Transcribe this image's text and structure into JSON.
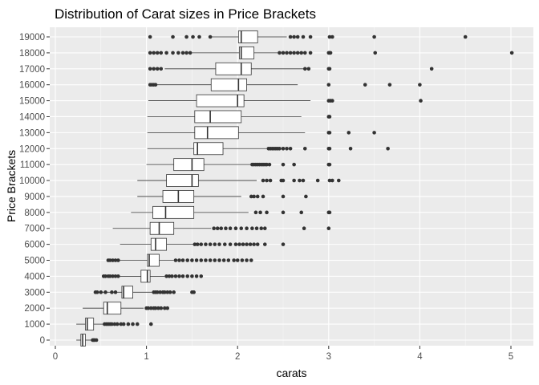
{
  "chart_data": {
    "type": "boxplot",
    "orientation": "horizontal",
    "title": "Distribution of Carat sizes in Price Brackets",
    "xlabel": "carats",
    "ylabel": "Price Brackets",
    "xlim": [
      0,
      5.25
    ],
    "x_ticks": [
      0,
      1,
      2,
      3,
      4,
      5
    ],
    "grid": true,
    "colors": {
      "panel": "#ebebeb",
      "grid_major": "#ffffff",
      "box_fill": "#ffffff",
      "line": "#333333",
      "outlier": "#333333"
    },
    "categories": [
      "0",
      "1000",
      "2000",
      "3000",
      "4000",
      "5000",
      "6000",
      "7000",
      "8000",
      "9000",
      "10000",
      "11000",
      "12000",
      "13000",
      "14000",
      "15000",
      "16000",
      "17000",
      "18000",
      "19000"
    ],
    "boxes": [
      {
        "category": "0",
        "min": 0.23,
        "q1": 0.28,
        "median": 0.3,
        "q3": 0.33,
        "max": 0.4,
        "outliers": [
          0.41,
          0.42,
          0.43,
          0.45
        ]
      },
      {
        "category": "1000",
        "min": 0.23,
        "q1": 0.33,
        "median": 0.35,
        "q3": 0.42,
        "max": 0.53,
        "outliers": [
          0.54,
          0.56,
          0.58,
          0.6,
          0.62,
          0.65,
          0.68,
          0.72,
          0.75,
          0.8,
          0.85,
          0.9,
          1.05
        ]
      },
      {
        "category": "2000",
        "min": 0.3,
        "q1": 0.53,
        "median": 0.57,
        "q3": 0.72,
        "max": 0.97,
        "outliers": [
          1.0,
          1.02,
          1.05,
          1.08,
          1.1,
          1.13,
          1.16,
          1.2,
          1.23
        ]
      },
      {
        "category": "3000",
        "min": 0.43,
        "q1": 0.73,
        "median": 0.75,
        "q3": 0.85,
        "max": 1.06,
        "outliers": [
          0.44,
          0.46,
          0.5,
          0.55,
          0.62,
          0.66,
          1.08,
          1.1,
          1.12,
          1.15,
          1.18,
          1.2,
          1.23,
          1.26,
          1.3,
          1.5,
          1.52
        ]
      },
      {
        "category": "4000",
        "min": 0.7,
        "q1": 0.94,
        "median": 1.01,
        "q3": 1.04,
        "max": 1.2,
        "outliers": [
          0.53,
          0.55,
          0.58,
          0.6,
          0.63,
          0.66,
          0.69,
          1.22,
          1.25,
          1.28,
          1.32,
          1.36,
          1.4,
          1.45,
          1.5,
          1.55,
          1.6
        ]
      },
      {
        "category": "5000",
        "min": 0.7,
        "q1": 1.01,
        "median": 1.03,
        "q3": 1.14,
        "max": 1.3,
        "outliers": [
          0.58,
          0.6,
          0.63,
          0.66,
          0.69,
          1.32,
          1.36,
          1.4,
          1.45,
          1.5,
          1.55,
          1.6,
          1.65,
          1.7,
          1.75,
          1.8,
          1.85,
          1.9,
          1.96,
          2.0,
          2.05,
          2.1,
          2.15
        ]
      },
      {
        "category": "6000",
        "min": 0.71,
        "q1": 1.05,
        "median": 1.1,
        "q3": 1.22,
        "max": 1.51,
        "outliers": [
          1.53,
          1.56,
          1.6,
          1.65,
          1.7,
          1.75,
          1.8,
          1.86,
          1.92,
          1.98,
          2.02,
          2.06,
          2.1,
          2.14,
          2.18,
          2.22,
          2.3,
          2.5
        ]
      },
      {
        "category": "7000",
        "min": 0.63,
        "q1": 1.04,
        "median": 1.14,
        "q3": 1.3,
        "max": 1.71,
        "outliers": [
          1.74,
          1.78,
          1.82,
          1.87,
          1.92,
          1.98,
          2.04,
          2.1,
          2.16,
          2.21,
          2.26,
          2.3,
          2.73,
          3.0
        ]
      },
      {
        "category": "8000",
        "min": 0.83,
        "q1": 1.07,
        "median": 1.21,
        "q3": 1.52,
        "max": 2.12,
        "outliers": [
          2.2,
          2.25,
          2.32,
          2.5,
          2.7,
          3.0,
          3.01
        ]
      },
      {
        "category": "9000",
        "min": 0.9,
        "q1": 1.18,
        "median": 1.35,
        "q3": 1.52,
        "max": 2.04,
        "outliers": [
          2.15,
          2.18,
          2.22,
          2.28,
          2.5,
          2.75
        ]
      },
      {
        "category": "10000",
        "min": 0.9,
        "q1": 1.22,
        "median": 1.5,
        "q3": 1.57,
        "max": 2.21,
        "outliers": [
          2.28,
          2.32,
          2.36,
          2.48,
          2.5,
          2.62,
          2.68,
          2.72,
          2.88,
          3.01,
          3.04,
          3.11
        ]
      },
      {
        "category": "11000",
        "min": 1.0,
        "q1": 1.3,
        "median": 1.5,
        "q3": 1.63,
        "max": 2.14,
        "outliers": [
          2.16,
          2.18,
          2.2,
          2.22,
          2.24,
          2.26,
          2.28,
          2.3,
          2.32,
          2.35,
          2.5,
          2.62,
          3.0,
          3.01
        ]
      },
      {
        "category": "12000",
        "min": 1.01,
        "q1": 1.52,
        "median": 1.56,
        "q3": 1.84,
        "max": 2.32,
        "outliers": [
          2.34,
          2.36,
          2.38,
          2.4,
          2.42,
          2.44,
          2.46,
          2.5,
          2.54,
          2.58,
          2.74,
          3.0,
          3.01,
          3.24,
          3.65
        ]
      },
      {
        "category": "13000",
        "min": 1.01,
        "q1": 1.53,
        "median": 1.67,
        "q3": 2.01,
        "max": 2.74,
        "outliers": [
          3.0,
          3.01,
          3.22,
          3.5
        ]
      },
      {
        "category": "14000",
        "min": 1.01,
        "q1": 1.53,
        "median": 1.7,
        "q3": 2.04,
        "max": 2.7,
        "outliers": [
          3.0,
          3.01
        ]
      },
      {
        "category": "15000",
        "min": 1.02,
        "q1": 1.55,
        "median": 2.0,
        "q3": 2.07,
        "max": 2.8,
        "outliers": [
          3.0,
          3.02,
          3.04,
          4.01
        ]
      },
      {
        "category": "16000",
        "min": 1.03,
        "q1": 1.71,
        "median": 2.01,
        "q3": 2.1,
        "max": 2.66,
        "outliers": [
          1.04,
          1.06,
          1.08,
          1.1,
          3.0,
          3.4,
          3.67,
          4.0
        ]
      },
      {
        "category": "17000",
        "min": 1.2,
        "q1": 1.76,
        "median": 2.04,
        "q3": 2.15,
        "max": 2.72,
        "outliers": [
          1.04,
          1.08,
          1.12,
          1.16,
          2.74,
          2.78,
          3.0,
          3.01,
          4.13
        ]
      },
      {
        "category": "18000",
        "min": 1.5,
        "q1": 2.02,
        "median": 2.04,
        "q3": 2.18,
        "max": 2.44,
        "outliers": [
          1.04,
          1.08,
          1.12,
          1.16,
          1.22,
          1.29,
          1.35,
          1.4,
          1.44,
          1.48,
          2.46,
          2.5,
          2.54,
          2.58,
          2.62,
          2.66,
          2.7,
          2.74,
          2.8,
          3.0,
          3.01,
          3.02,
          3.51,
          5.01
        ]
      },
      {
        "category": "19000",
        "min": 1.71,
        "q1": 2.01,
        "median": 2.04,
        "q3": 2.22,
        "max": 2.54,
        "outliers": [
          1.04,
          1.29,
          1.44,
          1.51,
          1.58,
          1.7,
          2.58,
          2.62,
          2.66,
          2.72,
          2.8,
          3.01,
          3.04,
          3.5,
          4.5
        ]
      }
    ]
  }
}
